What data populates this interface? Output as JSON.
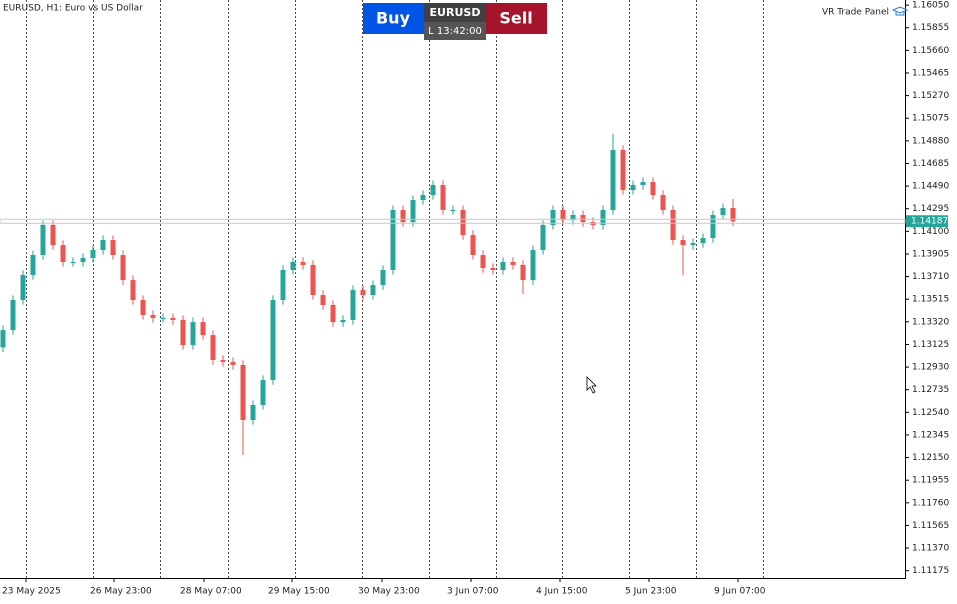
{
  "chart_data": {
    "type": "candlestick",
    "title": "EURUSD, H1:  Euro vs US Dollar",
    "panel": {
      "buy": "Buy",
      "symbol": "EURUSD",
      "time": "L 13:42:00",
      "sell": "Sell",
      "name": "VR Trade Panel"
    },
    "current_price": 1.14187,
    "up_color": "#26a69a",
    "down_color": "#ef5350",
    "ylim": [
      1.11112,
      1.16094
    ],
    "yticks": [
      {
        "value": 1.1605,
        "label": "1.16050"
      },
      1.15855,
      {
        "value": 1.1566,
        "label": "1.15660"
      },
      1.15465,
      {
        "value": 1.1527,
        "label": "1.15270"
      },
      1.15075,
      {
        "value": 1.1488,
        "label": "1.14880"
      },
      1.14685,
      {
        "value": 1.1449,
        "label": "1.14490"
      },
      1.14295,
      {
        "value": 1.141,
        "label": "1.14100"
      },
      1.13905,
      {
        "value": 1.1371,
        "label": "1.13710"
      },
      1.13515,
      {
        "value": 1.1332,
        "label": "1.13320"
      },
      1.13125,
      {
        "value": 1.1293,
        "label": "1.12930"
      },
      1.12735,
      {
        "value": 1.1254,
        "label": "1.12540"
      },
      1.12345,
      {
        "value": 1.1215,
        "label": "1.12150"
      },
      1.11955,
      {
        "value": 1.1176,
        "label": "1.11760"
      },
      1.11565,
      {
        "value": 1.1137,
        "label": "1.11370"
      },
      1.11175
    ],
    "xlabels": [
      "23 May 2025",
      "26 May 23:00",
      "28 May 07:00",
      "29 May 15:00",
      "30 May 23:00",
      "3 Jun 07:00",
      "4 Jun 15:00",
      "5 Jun 23:00",
      "9 Jun 07:00"
    ],
    "ohlc": [
      [
        1.131,
        1.13289,
        1.1306,
        1.13249
      ],
      [
        1.13249,
        1.13548,
        1.13209,
        1.13508
      ],
      [
        1.13508,
        1.13764,
        1.13468,
        1.13724
      ],
      [
        1.13724,
        1.13936,
        1.13684,
        1.13896
      ],
      [
        1.13896,
        1.14195,
        1.13856,
        1.14155
      ],
      [
        1.14155,
        1.14195,
        1.13942,
        1.13982
      ],
      [
        1.13982,
        1.14022,
        1.13796,
        1.13836
      ],
      [
        1.13836,
        1.13876,
        1.13796,
        1.13836
      ],
      [
        1.13836,
        1.1391,
        1.13796,
        1.1387
      ],
      [
        1.1387,
        1.13979,
        1.1383,
        1.13939
      ],
      [
        1.13939,
        1.14065,
        1.13899,
        1.14025
      ],
      [
        1.14025,
        1.14065,
        1.13856,
        1.13896
      ],
      [
        1.13896,
        1.13936,
        1.1364,
        1.1368
      ],
      [
        1.1368,
        1.1372,
        1.13468,
        1.13508
      ],
      [
        1.13508,
        1.13548,
        1.13339,
        1.13379
      ],
      [
        1.13379,
        1.13419,
        1.13313,
        1.13353
      ],
      [
        1.13353,
        1.13393,
        1.13313,
        1.13353
      ],
      [
        1.13353,
        1.13393,
        1.13296,
        1.13336
      ],
      [
        1.13336,
        1.13376,
        1.1308,
        1.1312
      ],
      [
        1.1312,
        1.13358,
        1.1308,
        1.13318
      ],
      [
        1.13318,
        1.13358,
        1.13166,
        1.13206
      ],
      [
        1.13206,
        1.13246,
        1.12951,
        1.12991
      ],
      [
        1.12991,
        1.13031,
        1.12934,
        1.12974
      ],
      [
        1.12974,
        1.13014,
        1.12908,
        1.12948
      ],
      [
        1.12948,
        1.12988,
        1.12172,
        1.12474
      ],
      [
        1.12474,
        1.12643,
        1.12434,
        1.12603
      ],
      [
        1.12603,
        1.12858,
        1.12563,
        1.12818
      ],
      [
        1.12818,
        1.13548,
        1.12778,
        1.13508
      ],
      [
        1.13508,
        1.13807,
        1.13468,
        1.13767
      ],
      [
        1.13767,
        1.13876,
        1.13727,
        1.13836
      ],
      [
        1.13836,
        1.13876,
        1.1377,
        1.1381
      ],
      [
        1.1381,
        1.1385,
        1.13511,
        1.13551
      ],
      [
        1.13551,
        1.13591,
        1.13425,
        1.13465
      ],
      [
        1.13465,
        1.13505,
        1.13278,
        1.13318
      ],
      [
        1.13318,
        1.13376,
        1.13278,
        1.13336
      ],
      [
        1.13336,
        1.13634,
        1.13296,
        1.13594
      ],
      [
        1.13594,
        1.13634,
        1.13511,
        1.13551
      ],
      [
        1.13551,
        1.13677,
        1.13511,
        1.13637
      ],
      [
        1.13637,
        1.13807,
        1.13597,
        1.13767
      ],
      [
        1.13767,
        1.14324,
        1.13727,
        1.14284
      ],
      [
        1.14284,
        1.14324,
        1.1414,
        1.1418
      ],
      [
        1.1418,
        1.1441,
        1.1414,
        1.1437
      ],
      [
        1.1437,
        1.14453,
        1.1433,
        1.14413
      ],
      [
        1.14413,
        1.14539,
        1.14373,
        1.14499
      ],
      [
        1.14499,
        1.14539,
        1.14244,
        1.14284
      ],
      [
        1.14284,
        1.14324,
        1.14244,
        1.14284
      ],
      [
        1.14284,
        1.14324,
        1.14028,
        1.14068
      ],
      [
        1.14068,
        1.14108,
        1.13856,
        1.13896
      ],
      [
        1.13896,
        1.13936,
        1.13744,
        1.13784
      ],
      [
        1.13784,
        1.13824,
        1.13727,
        1.13767
      ],
      [
        1.13767,
        1.13876,
        1.13727,
        1.13836
      ],
      [
        1.13836,
        1.13876,
        1.1377,
        1.1381
      ],
      [
        1.1381,
        1.1385,
        1.1356,
        1.1368
      ],
      [
        1.1368,
        1.13979,
        1.1364,
        1.13939
      ],
      [
        1.13939,
        1.14195,
        1.13899,
        1.14155
      ],
      [
        1.14155,
        1.14324,
        1.14115,
        1.14284
      ],
      [
        1.14284,
        1.14324,
        1.14158,
        1.14198
      ],
      [
        1.14198,
        1.14281,
        1.14158,
        1.14241
      ],
      [
        1.14241,
        1.14281,
        1.1414,
        1.1418
      ],
      [
        1.1418,
        1.1422,
        1.14115,
        1.14155
      ],
      [
        1.14155,
        1.14324,
        1.14115,
        1.14284
      ],
      [
        1.14284,
        1.1494,
        1.14244,
        1.14801
      ],
      [
        1.14801,
        1.14841,
        1.14416,
        1.14456
      ],
      [
        1.14456,
        1.14539,
        1.14416,
        1.14499
      ],
      [
        1.14499,
        1.14565,
        1.14459,
        1.14525
      ],
      [
        1.14525,
        1.14565,
        1.14373,
        1.14413
      ],
      [
        1.14413,
        1.14453,
        1.14244,
        1.14284
      ],
      [
        1.14284,
        1.14324,
        1.13985,
        1.14025
      ],
      [
        1.14025,
        1.14065,
        1.1372,
        1.13982
      ],
      [
        1.13982,
        1.14039,
        1.13942,
        1.13999
      ],
      [
        1.13999,
        1.14082,
        1.13959,
        1.14042
      ],
      [
        1.14042,
        1.14281,
        1.14002,
        1.14241
      ],
      [
        1.14241,
        1.14341,
        1.14201,
        1.14301
      ],
      [
        1.14301,
        1.1438,
        1.14147,
        1.14187
      ]
    ]
  }
}
